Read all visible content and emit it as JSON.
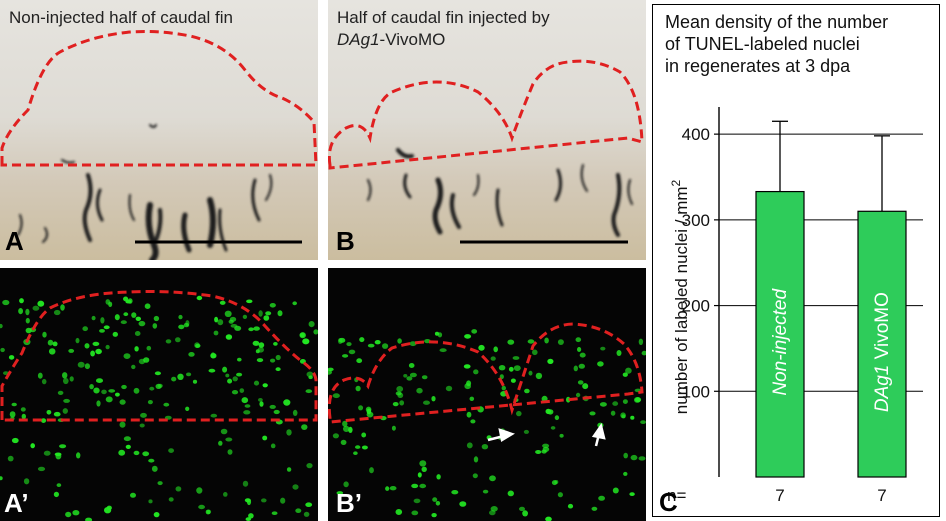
{
  "panels": {
    "A": {
      "label": "A",
      "caption": "Non-injected half of caudal fin"
    },
    "B": {
      "label": "B",
      "caption_line1": "Half of caudal fin injected by",
      "caption_gene": "DAg1",
      "caption_rest": "-VivoMO"
    },
    "A2": {
      "label": "A’"
    },
    "B2": {
      "label": "B’"
    }
  },
  "colors": {
    "outline_red": "#e02020",
    "nuclei_green": "#22e622",
    "bar_green": "#2ecc5a",
    "scale_bar": "#000000"
  },
  "chart_data": {
    "type": "bar",
    "panel_label": "C",
    "title_lines": [
      "Mean density of the number",
      "of TUNEL-labeled nuclei",
      "in regenerates at 3 dpa"
    ],
    "ylabel": "number of labeled nuclei / mm",
    "ylabel_sup": "2",
    "ylim": [
      0,
      420
    ],
    "yticks": [
      100,
      200,
      300,
      400
    ],
    "grid": true,
    "categories": [
      "Non-injected",
      "DAg1 VivoMO"
    ],
    "bar_labels": [
      {
        "italic": "Non-injected",
        "normal": ""
      },
      {
        "italic": "DAg1",
        "normal": " VivoMO"
      }
    ],
    "values": [
      333,
      310
    ],
    "error_upper": [
      415,
      398
    ],
    "n_label": "n=",
    "n": [
      "7",
      "7"
    ]
  }
}
